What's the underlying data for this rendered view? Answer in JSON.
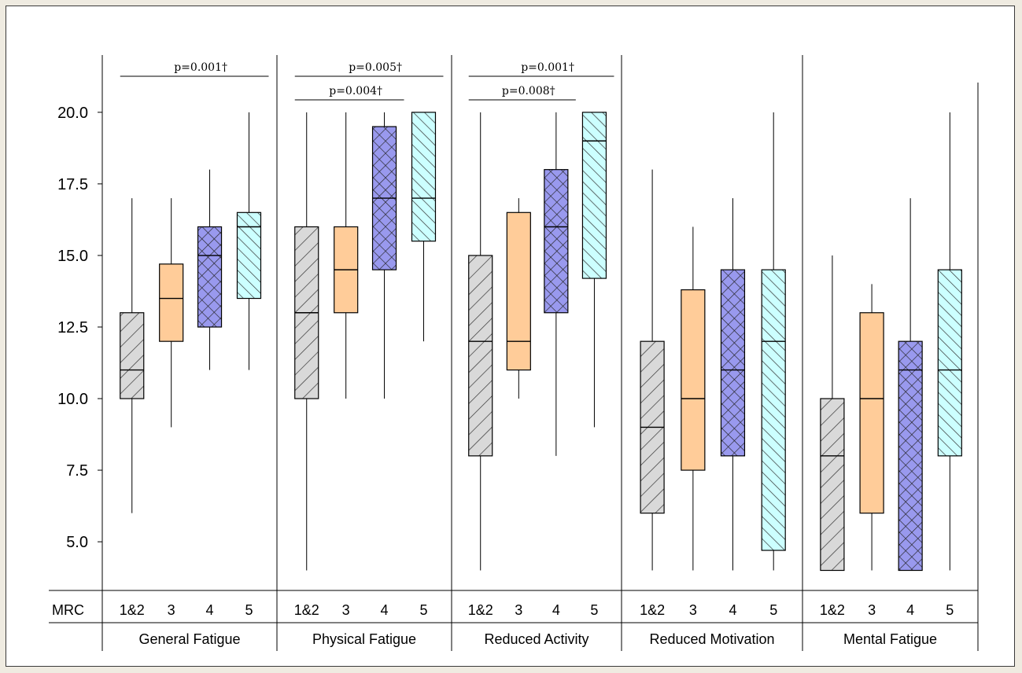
{
  "chart_data": {
    "type": "box",
    "y_ticks": [
      "20.0",
      "17.5",
      "15.0",
      "12.5",
      "10.0",
      "7.5",
      "5.0"
    ],
    "y_tick_values": [
      20.0,
      17.5,
      15.0,
      12.5,
      10.0,
      7.5,
      5.0
    ],
    "ylim": [
      3.3,
      22.0
    ],
    "row_label": "MRC",
    "categories": [
      "1&2",
      "3",
      "4",
      "5"
    ],
    "colors": {
      "1&2": "#d9d9d9",
      "3": "#ffcc99",
      "4": "#9999ee",
      "5": "#ccffff"
    },
    "patterns": {
      "1&2": "back-diagonal-hatch",
      "3": "solid",
      "4": "cross-hatch",
      "5": "forward-diagonal-hatch"
    },
    "groups": [
      {
        "label": "General Fatigue",
        "boxes": [
          {
            "category": "1&2",
            "min": 6,
            "q1": 10,
            "median": 11,
            "q3": 13,
            "max": 17
          },
          {
            "category": "3",
            "min": 9,
            "q1": 12,
            "median": 13.5,
            "q3": 14.7,
            "max": 17
          },
          {
            "category": "4",
            "min": 11,
            "q1": 12.5,
            "median": 15,
            "q3": 16,
            "max": 18
          },
          {
            "category": "5",
            "min": 11,
            "q1": 13.5,
            "median": 16,
            "q3": 16.5,
            "max": 20
          }
        ],
        "annotations": [
          {
            "text": "p=0.001†",
            "from": "1&2",
            "to": "5",
            "level": 1
          }
        ]
      },
      {
        "label": "Physical Fatigue",
        "boxes": [
          {
            "category": "1&2",
            "min": 4,
            "q1": 10,
            "median": 13,
            "q3": 16,
            "max": 20
          },
          {
            "category": "3",
            "min": 10,
            "q1": 13,
            "median": 14.5,
            "q3": 16,
            "max": 20
          },
          {
            "category": "4",
            "min": 10,
            "q1": 14.5,
            "median": 17,
            "q3": 19.5,
            "max": 20
          },
          {
            "category": "5",
            "min": 12,
            "q1": 15.5,
            "median": 17,
            "q3": 20,
            "max": 20
          }
        ],
        "annotations": [
          {
            "text": "p=0.005†",
            "from": "1&2",
            "to": "5",
            "level": 1
          },
          {
            "text": "p=0.004†",
            "from": "1&2",
            "to": "4",
            "level": 0
          }
        ]
      },
      {
        "label": "Reduced Activity",
        "boxes": [
          {
            "category": "1&2",
            "min": 4,
            "q1": 8,
            "median": 12,
            "q3": 15,
            "max": 20
          },
          {
            "category": "3",
            "min": 10,
            "q1": 11,
            "median": 12,
            "q3": 16.5,
            "max": 17
          },
          {
            "category": "4",
            "min": 8,
            "q1": 13,
            "median": 16,
            "q3": 18,
            "max": 20
          },
          {
            "category": "5",
            "min": 9,
            "q1": 14.2,
            "median": 19,
            "q3": 20,
            "max": 20
          }
        ],
        "annotations": [
          {
            "text": "p=0.001†",
            "from": "1&2",
            "to": "5",
            "level": 1
          },
          {
            "text": "p=0.008†",
            "from": "1&2",
            "to": "4",
            "level": 0
          }
        ]
      },
      {
        "label": "Reduced Motivation",
        "boxes": [
          {
            "category": "1&2",
            "min": 4,
            "q1": 6,
            "median": 9,
            "q3": 12,
            "max": 18
          },
          {
            "category": "3",
            "min": 4,
            "q1": 7.5,
            "median": 10,
            "q3": 13.8,
            "max": 16
          },
          {
            "category": "4",
            "min": 4,
            "q1": 8,
            "median": 11,
            "q3": 14.5,
            "max": 17
          },
          {
            "category": "5",
            "min": 4,
            "q1": 4.7,
            "median": 12,
            "q3": 14.5,
            "max": 20
          }
        ],
        "annotations": []
      },
      {
        "label": "Mental Fatigue",
        "boxes": [
          {
            "category": "1&2",
            "min": 4,
            "q1": 4,
            "median": 8,
            "q3": 10,
            "max": 15
          },
          {
            "category": "3",
            "min": 4,
            "q1": 6,
            "median": 10,
            "q3": 13,
            "max": 14
          },
          {
            "category": "4",
            "min": 4,
            "q1": 4,
            "median": 11,
            "q3": 12,
            "max": 17
          },
          {
            "category": "5",
            "min": 4,
            "q1": 8,
            "median": 11,
            "q3": 14.5,
            "max": 20
          }
        ],
        "annotations": []
      }
    ]
  }
}
